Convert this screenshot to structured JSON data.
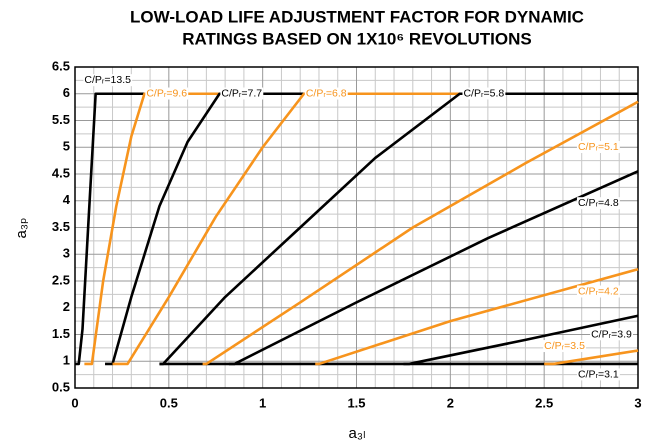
{
  "chart_data": {
    "type": "line",
    "title": [
      "LOW-LOAD LIFE ADJUSTMENT FACTOR FOR DYNAMIC",
      "RATINGS BASED ON 1X10⁶ REVOLUTIONS"
    ],
    "xlabel": "a₃ₗ",
    "ylabel": "a₃ₚ",
    "xlim": [
      0,
      3
    ],
    "ylim": [
      0.5,
      6.5
    ],
    "xticks": [
      0,
      0.5,
      1,
      1.5,
      2,
      2.5,
      3
    ],
    "yticks": [
      0.5,
      1,
      1.5,
      2,
      2.5,
      3,
      3.5,
      4,
      4.5,
      5,
      5.5,
      6,
      6.5
    ],
    "xminor": [
      0.1,
      0.2,
      0.3,
      0.4,
      0.6,
      0.7,
      0.8,
      0.9,
      1.1,
      1.2,
      1.3,
      1.4,
      1.6,
      1.7,
      1.8,
      1.9,
      2.1,
      2.2,
      2.3,
      2.4,
      2.6,
      2.7,
      2.8,
      2.9
    ],
    "yminor": [
      0.75,
      1.25,
      1.75,
      2.25,
      2.75,
      3.25,
      3.75,
      4.25,
      4.75,
      5.25,
      5.75,
      6.25
    ],
    "grid": true,
    "series": [
      {
        "name": "C/Pᵣ=3.1",
        "color": "#000000",
        "x": [
          0.45,
          3
        ],
        "values": [
          0.95,
          0.95
        ]
      },
      {
        "name": "C/Pᵣ=13.5",
        "color": "#000000",
        "x": [
          0,
          0.02,
          0.04,
          0.07,
          0.11,
          3
        ],
        "values": [
          0.95,
          0.95,
          1.6,
          3.5,
          6,
          6
        ]
      },
      {
        "name": "C/Pᵣ=9.6",
        "color": "#f7941d",
        "x": [
          0.05,
          0.09,
          0.15,
          0.22,
          0.3,
          0.37,
          3
        ],
        "values": [
          0.95,
          0.95,
          2.5,
          3.9,
          5.2,
          6,
          6
        ]
      },
      {
        "name": "C/Pᵣ=7.7",
        "color": "#000000",
        "x": [
          0.16,
          0.2,
          0.3,
          0.45,
          0.6,
          0.77,
          3
        ],
        "values": [
          0.95,
          0.95,
          2.2,
          3.9,
          5.1,
          6,
          6
        ]
      },
      {
        "name": "C/Pᵣ=6.8",
        "color": "#f7941d",
        "x": [
          0.2,
          0.28,
          0.5,
          0.75,
          1.0,
          1.22,
          3
        ],
        "values": [
          0.95,
          0.95,
          2.2,
          3.7,
          5.0,
          6,
          6
        ]
      },
      {
        "name": "C/Pᵣ=5.8",
        "color": "#000000",
        "x": [
          0.45,
          0.47,
          0.8,
          1.2,
          1.6,
          2.05,
          3
        ],
        "values": [
          0.95,
          0.95,
          2.2,
          3.5,
          4.8,
          6,
          6
        ]
      },
      {
        "name": "C/Pᵣ=5.1",
        "color": "#f7941d",
        "x": [
          0.68,
          0.7,
          1.2,
          1.8,
          2.4,
          3
        ],
        "values": [
          0.95,
          0.95,
          2.1,
          3.5,
          4.7,
          5.85
        ]
      },
      {
        "name": "C/Pᵣ=4.8",
        "color": "#000000",
        "x": [
          0.82,
          0.85,
          1.5,
          2.2,
          3
        ],
        "values": [
          0.95,
          0.95,
          2.1,
          3.3,
          4.55
        ]
      },
      {
        "name": "C/Pᵣ=4.2",
        "color": "#f7941d",
        "x": [
          1.28,
          1.3,
          2.0,
          3
        ],
        "values": [
          0.95,
          0.95,
          1.75,
          2.72
        ]
      },
      {
        "name": "C/Pᵣ=3.9",
        "color": "#000000",
        "x": [
          1.75,
          1.78,
          2.4,
          3
        ],
        "values": [
          0.95,
          0.95,
          1.4,
          1.85
        ]
      },
      {
        "name": "C/Pᵣ=3.5",
        "color": "#f7941d",
        "x": [
          2.5,
          2.55,
          3
        ],
        "values": [
          0.95,
          0.95,
          1.2
        ]
      }
    ]
  }
}
